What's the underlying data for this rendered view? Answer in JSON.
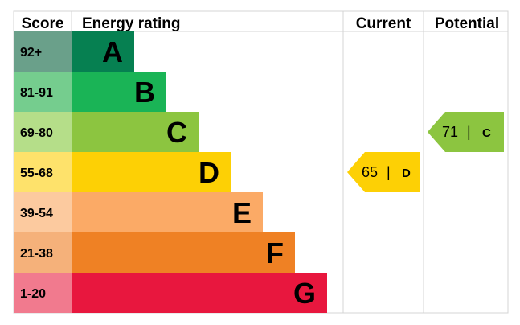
{
  "chart_data": {
    "type": "table",
    "headers": {
      "score": "Score",
      "rating": "Energy rating",
      "current": "Current",
      "potential": "Potential"
    },
    "bands": [
      {
        "range": "92+",
        "letter": "A",
        "color": "#068051",
        "score_color": "#6aa08a"
      },
      {
        "range": "81-91",
        "letter": "B",
        "color": "#1ab456",
        "score_color": "#75cd8e"
      },
      {
        "range": "69-80",
        "letter": "C",
        "color": "#8cc540",
        "score_color": "#b5de89"
      },
      {
        "range": "55-68",
        "letter": "D",
        "color": "#fdd005",
        "score_color": "#fee26b"
      },
      {
        "range": "39-54",
        "letter": "E",
        "color": "#fbaa66",
        "score_color": "#fcca9f"
      },
      {
        "range": "21-38",
        "letter": "F",
        "color": "#ef8124",
        "score_color": "#f5b17a"
      },
      {
        "range": "1-20",
        "letter": "G",
        "color": "#e8173e",
        "score_color": "#f17a8e"
      }
    ],
    "current": {
      "value": 65,
      "letter": "D",
      "separator": "|",
      "color": "#fdd005"
    },
    "potential": {
      "value": 71,
      "letter": "C",
      "separator": "|",
      "color": "#8cc540"
    }
  }
}
